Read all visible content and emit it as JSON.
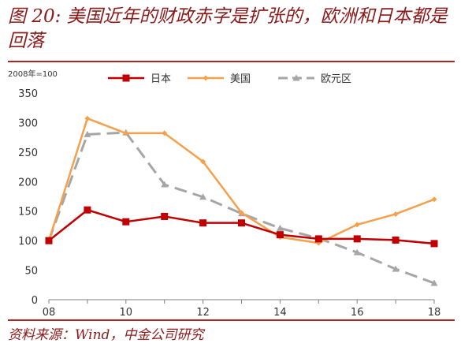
{
  "figure": {
    "title": "图 20: 美国近年的财政赤字是扩张的，欧洲和日本都是回落",
    "source": "资料来源：Wind，中金公司研究"
  },
  "chart_data": {
    "type": "line",
    "unit_label": "2008年=100",
    "x": [
      "08",
      "09",
      "10",
      "11",
      "12",
      "13",
      "14",
      "15",
      "16",
      "17",
      "18"
    ],
    "x_tick_labels": [
      "08",
      "10",
      "12",
      "14",
      "16",
      "18"
    ],
    "ylim": [
      0,
      350
    ],
    "y_ticks": [
      0,
      50,
      100,
      150,
      200,
      250,
      300,
      350
    ],
    "grid": false,
    "legend_position": "top",
    "series": [
      {
        "name": "日本",
        "color": "#c00000",
        "style": "solid",
        "marker": "square",
        "values": [
          100,
          152,
          132,
          141,
          130,
          130,
          110,
          103,
          103,
          101,
          95
        ]
      },
      {
        "name": "美国",
        "color": "#f4a04c",
        "style": "solid",
        "marker": "diamond",
        "values": [
          100,
          307,
          282,
          282,
          234,
          147,
          106,
          96,
          127,
          145,
          170
        ]
      },
      {
        "name": "欧元区",
        "color": "#a6a6a6",
        "style": "dashed",
        "marker": "triangle",
        "values": [
          100,
          280,
          283,
          195,
          174,
          146,
          121,
          104,
          80,
          52,
          28
        ]
      }
    ]
  }
}
